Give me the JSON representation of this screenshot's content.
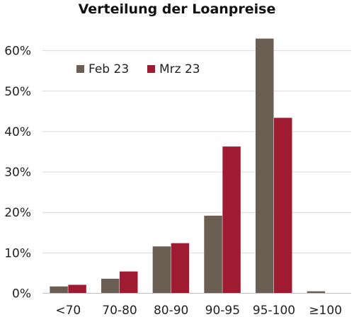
{
  "chart_data": {
    "type": "bar",
    "title": "Verteilung der Loanpreise",
    "xlabel": "",
    "ylabel": "",
    "categories": [
      "<70",
      "70-80",
      "80-90",
      "90-95",
      "95-100",
      "≥100"
    ],
    "series": [
      {
        "name": "Feb 23",
        "color": "#6b5e52",
        "values": [
          1.7,
          3.6,
          11.6,
          19.2,
          63.0,
          0.5
        ]
      },
      {
        "name": "Mrz 23",
        "color": "#9e1b32",
        "values": [
          2.1,
          5.4,
          12.4,
          36.3,
          43.4,
          0.0
        ]
      }
    ],
    "ylim": [
      0,
      70
    ],
    "yticks": [
      "0%",
      "10%",
      "20%",
      "30%",
      "40%",
      "50%",
      "60%"
    ],
    "ytick_values": [
      0,
      10,
      20,
      30,
      40,
      50,
      60
    ],
    "grid": true,
    "legend_position": "top-left"
  }
}
